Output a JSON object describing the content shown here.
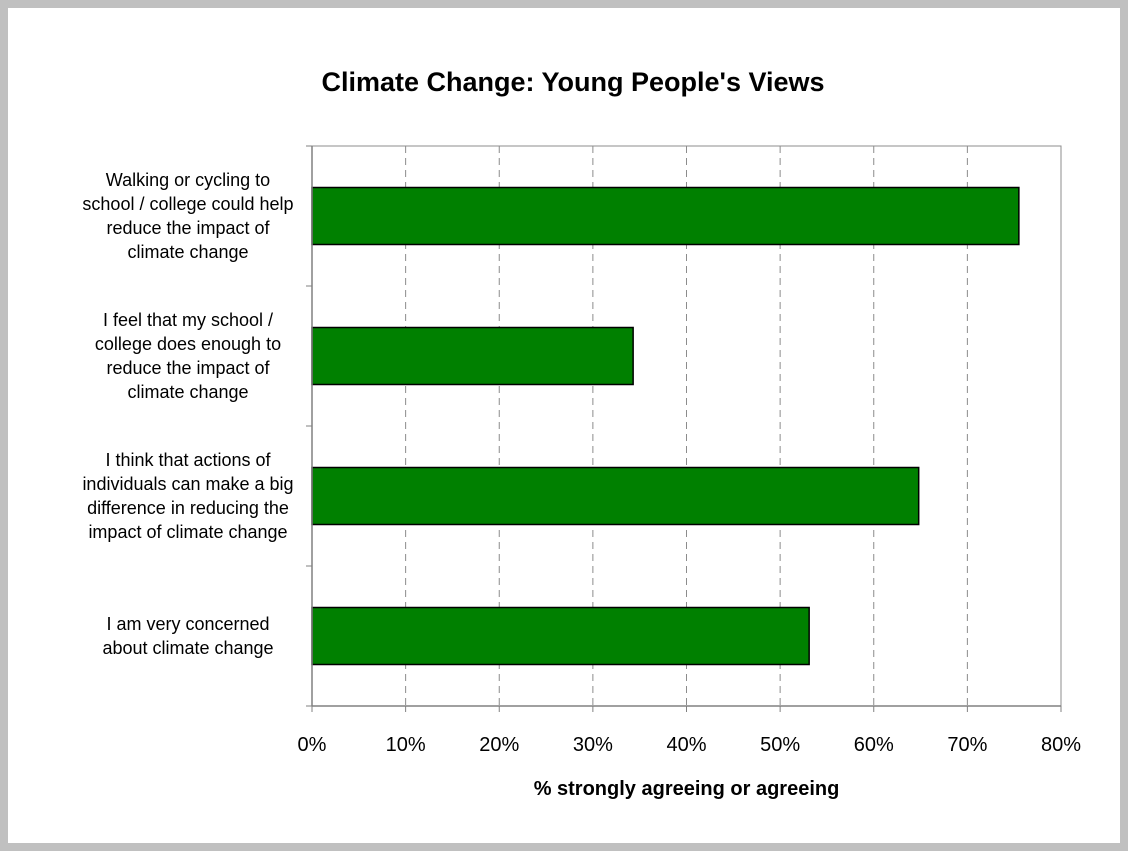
{
  "chart_data": {
    "type": "bar",
    "orientation": "horizontal",
    "title": "Climate Change: Young People's Views",
    "xlabel": "% strongly agreeing or agreeing",
    "ylabel": "",
    "xlim": [
      0,
      80
    ],
    "x_ticks": [
      "0%",
      "10%",
      "20%",
      "30%",
      "40%",
      "50%",
      "60%",
      "70%",
      "80%"
    ],
    "categories": [
      "Walking or cycling to school / college could help reduce the impact of climate change",
      "I feel that my school / college does enough to reduce the impact of climate change",
      "I think that actions of individuals can make a big difference in reducing the impact of climate change",
      "I am very concerned about climate change"
    ],
    "category_lines": [
      [
        "Walking or cycling to",
        "school / college could help",
        "reduce the impact of",
        "climate change"
      ],
      [
        "I feel that my school /",
        "college does enough to",
        "reduce the impact of",
        "climate change"
      ],
      [
        "I think that actions of",
        "individuals can make a big",
        "difference in reducing the",
        "impact of climate change"
      ],
      [
        "I am very concerned",
        "about climate change"
      ]
    ],
    "values": [
      75.5,
      34.3,
      64.8,
      53.1
    ],
    "grid": "vertical dashed",
    "legend": "none",
    "bar_color": "#008000",
    "bar_edge_color": "#000000"
  }
}
